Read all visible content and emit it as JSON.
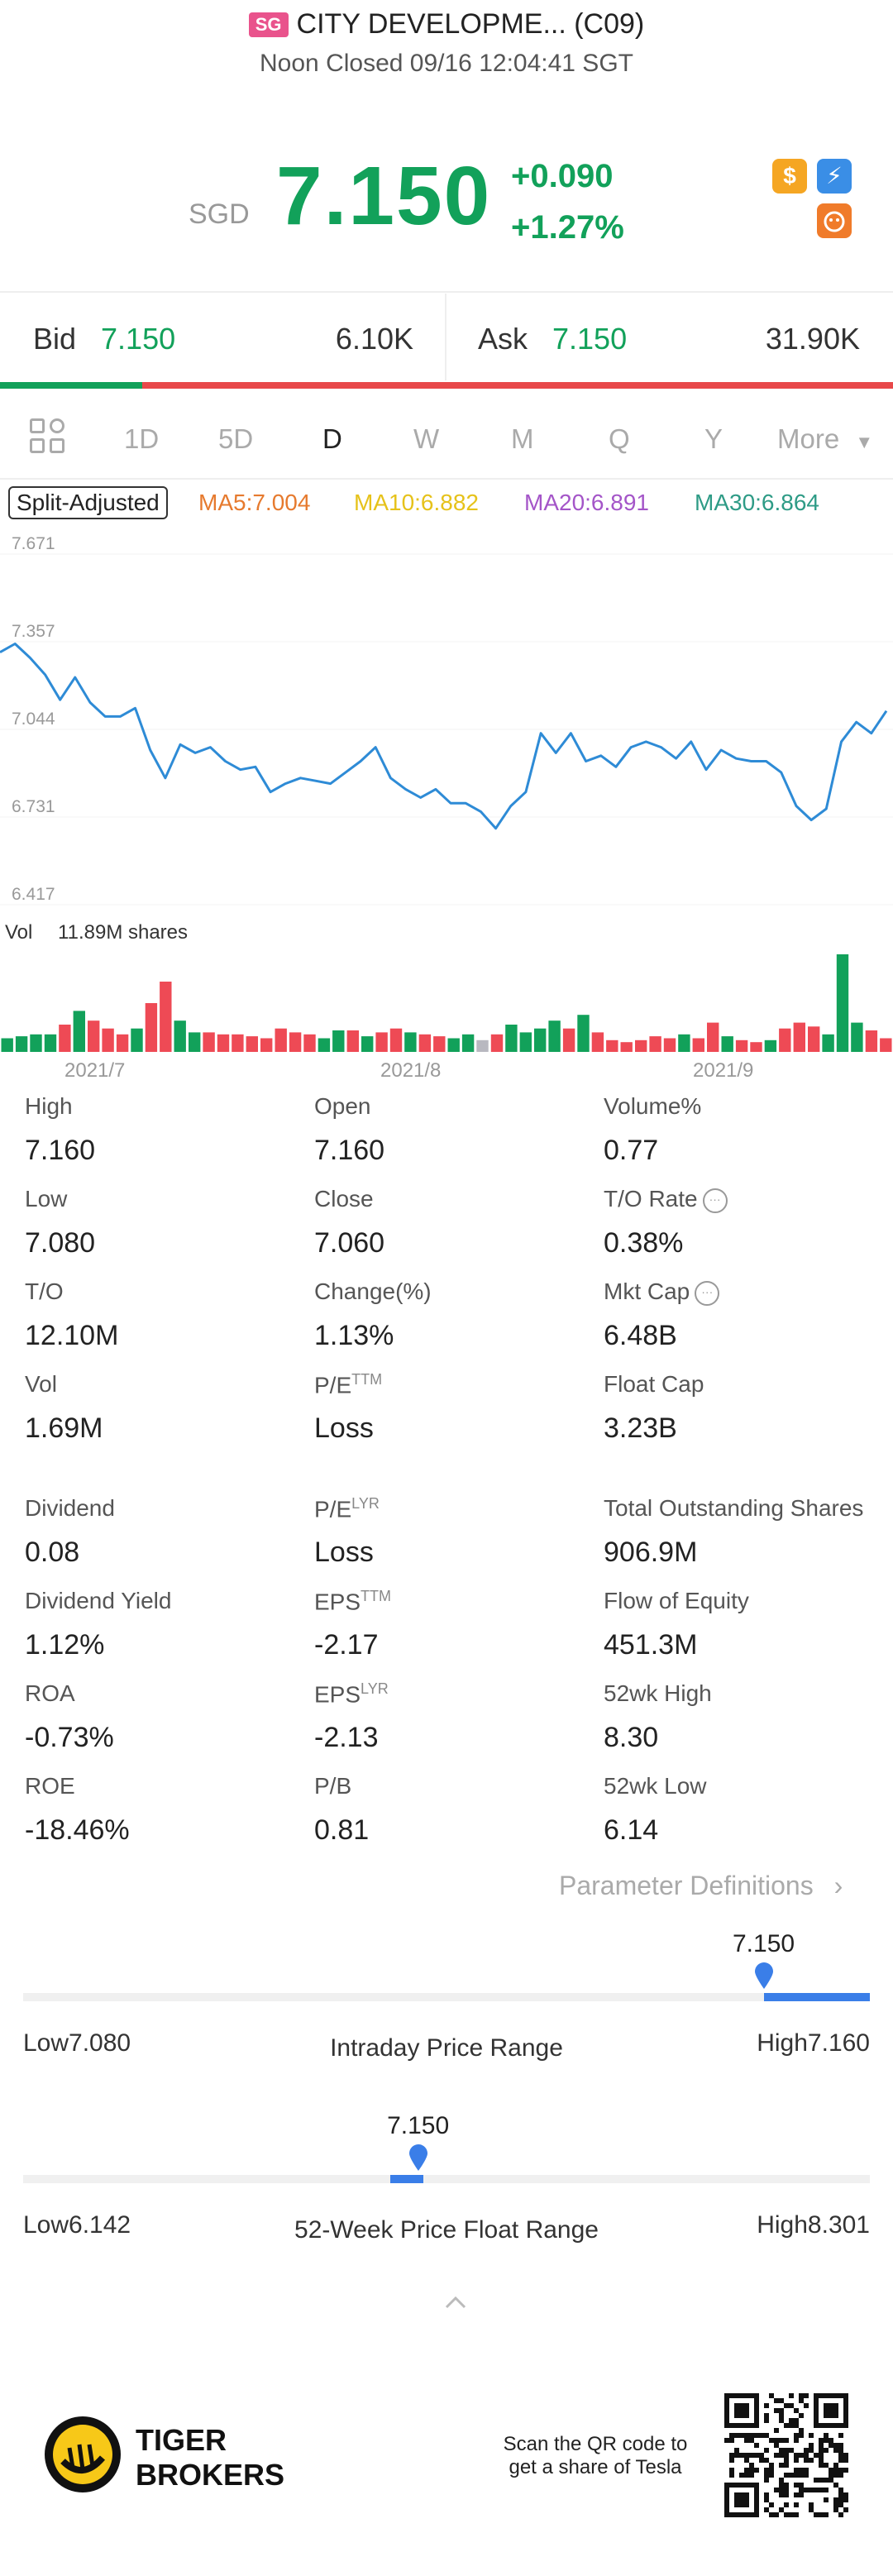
{
  "header": {
    "market_badge": "SG",
    "title": "CITY DEVELOPME... (C09)",
    "subtitle": "Noon Closed 09/16 12:04:41 SGT"
  },
  "quote": {
    "currency": "SGD",
    "price": "7.150",
    "change": "+0.090",
    "change_pct": "+1.27%",
    "icon1": "$",
    "icon2": "⚡"
  },
  "bid_ask": {
    "bid_label": "Bid",
    "bid_price": "7.150",
    "bid_size": "6.10K",
    "ask_label": "Ask",
    "ask_price": "7.150",
    "ask_size": "31.90K"
  },
  "tabs": [
    {
      "label": "1D"
    },
    {
      "label": "5D"
    },
    {
      "label": "D"
    },
    {
      "label": "W"
    },
    {
      "label": "M"
    },
    {
      "label": "Q"
    },
    {
      "label": "Y"
    },
    {
      "label": "More"
    }
  ],
  "ma": {
    "split_label": "Split-Adjusted",
    "ma5": "MA5:7.004",
    "ma10": "MA10:6.882",
    "ma20": "MA20:6.891",
    "ma30": "MA30:6.864",
    "colors": {
      "ma5": "#e67a2e",
      "ma10": "#e6c21a",
      "ma20": "#a455c8",
      "ma30": "#2e9b86"
    }
  },
  "chart_data": {
    "type": "line",
    "y_ticks": [
      "7.671",
      "7.357",
      "7.044",
      "6.731",
      "6.417"
    ],
    "ylim": [
      6.417,
      7.671
    ],
    "x_ticks": [
      "2021/7",
      "2021/8",
      "2021/9"
    ],
    "series": [
      {
        "values": [
          7.32,
          7.35,
          7.3,
          7.24,
          7.15,
          7.23,
          7.14,
          7.09,
          7.09,
          7.12,
          6.97,
          6.87,
          6.99,
          6.96,
          6.98,
          6.93,
          6.9,
          6.91,
          6.82,
          6.85,
          6.87,
          6.86,
          6.85,
          6.89,
          6.93,
          6.98,
          6.87,
          6.83,
          6.8,
          6.83,
          6.78,
          6.78,
          6.75,
          6.69,
          6.77,
          6.82,
          7.03,
          6.96,
          7.03,
          6.93,
          6.95,
          6.91,
          6.98,
          7.0,
          6.98,
          6.94,
          7.0,
          6.9,
          6.97,
          6.94,
          6.93,
          6.93,
          6.89,
          6.77,
          6.72,
          6.76,
          7.0,
          7.07,
          7.03,
          7.11
        ]
      }
    ],
    "volume": {
      "label": "Vol",
      "value": "11.89M shares",
      "bars": [
        {
          "v": 0.14,
          "c": "g"
        },
        {
          "v": 0.16,
          "c": "g"
        },
        {
          "v": 0.18,
          "c": "g"
        },
        {
          "v": 0.18,
          "c": "g"
        },
        {
          "v": 0.28,
          "c": "r"
        },
        {
          "v": 0.42,
          "c": "g"
        },
        {
          "v": 0.32,
          "c": "r"
        },
        {
          "v": 0.24,
          "c": "r"
        },
        {
          "v": 0.18,
          "c": "r"
        },
        {
          "v": 0.24,
          "c": "g"
        },
        {
          "v": 0.5,
          "c": "r"
        },
        {
          "v": 0.72,
          "c": "r"
        },
        {
          "v": 0.32,
          "c": "g"
        },
        {
          "v": 0.2,
          "c": "g"
        },
        {
          "v": 0.2,
          "c": "r"
        },
        {
          "v": 0.18,
          "c": "r"
        },
        {
          "v": 0.18,
          "c": "r"
        },
        {
          "v": 0.16,
          "c": "r"
        },
        {
          "v": 0.14,
          "c": "r"
        },
        {
          "v": 0.24,
          "c": "r"
        },
        {
          "v": 0.2,
          "c": "r"
        },
        {
          "v": 0.18,
          "c": "r"
        },
        {
          "v": 0.14,
          "c": "g"
        },
        {
          "v": 0.22,
          "c": "g"
        },
        {
          "v": 0.22,
          "c": "r"
        },
        {
          "v": 0.16,
          "c": "g"
        },
        {
          "v": 0.2,
          "c": "r"
        },
        {
          "v": 0.24,
          "c": "r"
        },
        {
          "v": 0.2,
          "c": "g"
        },
        {
          "v": 0.18,
          "c": "r"
        },
        {
          "v": 0.16,
          "c": "r"
        },
        {
          "v": 0.14,
          "c": "g"
        },
        {
          "v": 0.18,
          "c": "g"
        },
        {
          "v": 0.12,
          "c": "x"
        },
        {
          "v": 0.18,
          "c": "r"
        },
        {
          "v": 0.28,
          "c": "g"
        },
        {
          "v": 0.2,
          "c": "g"
        },
        {
          "v": 0.24,
          "c": "g"
        },
        {
          "v": 0.32,
          "c": "g"
        },
        {
          "v": 0.24,
          "c": "r"
        },
        {
          "v": 0.38,
          "c": "g"
        },
        {
          "v": 0.2,
          "c": "r"
        },
        {
          "v": 0.12,
          "c": "r"
        },
        {
          "v": 0.1,
          "c": "r"
        },
        {
          "v": 0.12,
          "c": "r"
        },
        {
          "v": 0.16,
          "c": "r"
        },
        {
          "v": 0.14,
          "c": "r"
        },
        {
          "v": 0.18,
          "c": "g"
        },
        {
          "v": 0.14,
          "c": "r"
        },
        {
          "v": 0.3,
          "c": "r"
        },
        {
          "v": 0.16,
          "c": "g"
        },
        {
          "v": 0.12,
          "c": "r"
        },
        {
          "v": 0.1,
          "c": "r"
        },
        {
          "v": 0.12,
          "c": "g"
        },
        {
          "v": 0.24,
          "c": "r"
        },
        {
          "v": 0.3,
          "c": "r"
        },
        {
          "v": 0.26,
          "c": "r"
        },
        {
          "v": 0.18,
          "c": "g"
        },
        {
          "v": 1.0,
          "c": "g"
        },
        {
          "v": 0.3,
          "c": "g"
        },
        {
          "v": 0.22,
          "c": "r"
        },
        {
          "v": 0.14,
          "c": "r"
        }
      ],
      "colors": {
        "g": "#12a15a",
        "r": "#ee4a55",
        "x": "#b8b8c0"
      }
    },
    "line_color": "#2e8bd6"
  },
  "stats": [
    {
      "label": "High",
      "value": "7.160"
    },
    {
      "label": "Open",
      "value": "7.160"
    },
    {
      "label": "Volume%",
      "value": "0.77"
    },
    {
      "label": "Low",
      "value": "7.080"
    },
    {
      "label": "Close",
      "value": "7.060"
    },
    {
      "label": "T/O Rate",
      "value": "0.38%",
      "info": true
    },
    {
      "label": "T/O",
      "value": "12.10M"
    },
    {
      "label": "Change(%)",
      "value": "1.13%"
    },
    {
      "label": "Mkt Cap",
      "value": "6.48B",
      "info": true
    },
    {
      "label": "Vol",
      "value": "1.69M"
    },
    {
      "label": "P/E",
      "sup": "TTM",
      "value": "Loss"
    },
    {
      "label": "Float Cap",
      "value": "3.23B"
    },
    {
      "label": "Dividend",
      "value": "0.08"
    },
    {
      "label": "P/E",
      "sup": "LYR",
      "value": "Loss"
    },
    {
      "label": "Total Outstanding Shares",
      "value": "906.9M"
    },
    {
      "label": "Dividend Yield",
      "value": "1.12%"
    },
    {
      "label": "EPS",
      "sup": "TTM",
      "value": "-2.17"
    },
    {
      "label": "Flow of Equity",
      "value": "451.3M"
    },
    {
      "label": "ROA",
      "value": "-0.73%"
    },
    {
      "label": "EPS",
      "sup": "LYR",
      "value": "-2.13"
    },
    {
      "label": "52wk High",
      "value": "8.30"
    },
    {
      "label": "ROE",
      "value": "-18.46%"
    },
    {
      "label": "P/B",
      "value": "0.81"
    },
    {
      "label": "52wk Low",
      "value": "6.14"
    }
  ],
  "param_def": "Parameter Definitions",
  "intraday_range": {
    "title": "Intraday Price Range",
    "low_label": "Low7.080",
    "high_label": "High7.160",
    "current": "7.150",
    "low": 7.08,
    "high": 7.16,
    "value": 7.15
  },
  "week52_range": {
    "title": "52-Week Price Float Range",
    "low_label": "Low6.142",
    "high_label": "High8.301",
    "current": "7.150",
    "low": 6.142,
    "high": 8.301,
    "value": 7.15
  },
  "footer": {
    "brand_line1": "TIGER",
    "brand_line2": "BROKERS",
    "scan_line1": "Scan the QR code to",
    "scan_line2": "get a share of Tesla"
  },
  "accent_color": "#3a7ee8",
  "up_color": "#12a15a"
}
